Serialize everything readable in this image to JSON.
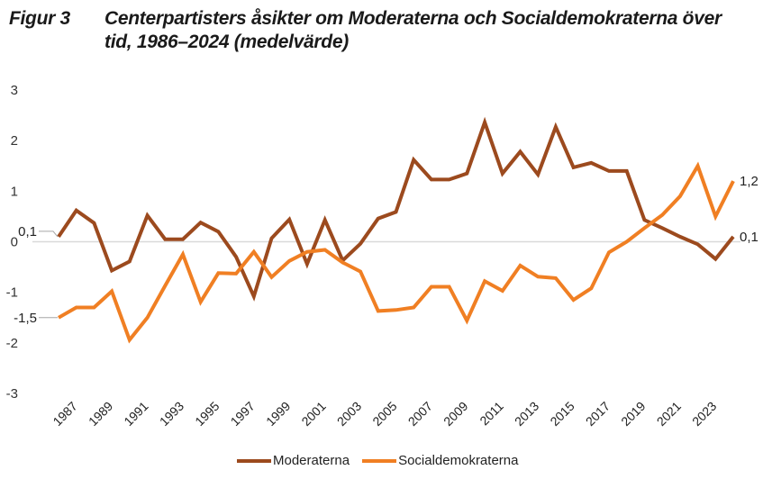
{
  "figure": {
    "number": "Figur 3",
    "title": "Centerpartisters åsikter om Moderaterna och Socialdemokraterna över tid, 1986–2024 (medelvärde)"
  },
  "chart_data": {
    "type": "line",
    "title": "Centerpartisters åsikter om Moderaterna och Socialdemokraterna över tid, 1986–2024 (medelvärde)",
    "xlabel": "",
    "ylabel": "",
    "ylim": [
      -3,
      3
    ],
    "yticks": [
      "3",
      "2",
      "1",
      "0",
      "-1",
      "-2",
      "-3"
    ],
    "ytick_values": [
      3,
      2,
      1,
      0,
      -1,
      -2,
      -3
    ],
    "grid": false,
    "zero_line": true,
    "legend_position": "bottom",
    "x": [
      1986,
      1987,
      1988,
      1989,
      1990,
      1991,
      1992,
      1993,
      1994,
      1995,
      1996,
      1997,
      1998,
      1999,
      2000,
      2001,
      2002,
      2003,
      2004,
      2005,
      2006,
      2007,
      2008,
      2009,
      2010,
      2011,
      2012,
      2013,
      2014,
      2015,
      2016,
      2017,
      2018,
      2019,
      2020,
      2021,
      2022,
      2023,
      2024
    ],
    "xtick_labels": [
      "1987",
      "1989",
      "1991",
      "1993",
      "1995",
      "1997",
      "1999",
      "2001",
      "2003",
      "2005",
      "2007",
      "2009",
      "2011",
      "2013",
      "2015",
      "2017",
      "2019",
      "2021",
      "2023"
    ],
    "series": [
      {
        "name": "Moderaterna",
        "color": "#9c4a1e",
        "values": [
          0.1,
          0.62,
          0.37,
          -0.57,
          -0.39,
          0.52,
          0.05,
          0.05,
          0.38,
          0.2,
          -0.3,
          -1.08,
          0.07,
          0.44,
          -0.44,
          0.43,
          -0.37,
          -0.04,
          0.46,
          0.59,
          1.62,
          1.23,
          1.23,
          1.35,
          2.36,
          1.35,
          1.78,
          1.33,
          2.27,
          1.47,
          1.56,
          1.4,
          1.4,
          0.43,
          0.27,
          0.1,
          -0.05,
          -0.34,
          0.1
        ],
        "start_label": "0,1",
        "end_label": "0,1"
      },
      {
        "name": "Socialdemokraterna",
        "color": "#f07f23",
        "values": [
          -1.5,
          -1.3,
          -1.3,
          -0.98,
          -1.94,
          -1.5,
          -0.87,
          -0.25,
          -1.19,
          -0.62,
          -0.63,
          -0.2,
          -0.7,
          -0.38,
          -0.2,
          -0.16,
          -0.41,
          -0.59,
          -1.37,
          -1.35,
          -1.3,
          -0.89,
          -0.89,
          -1.56,
          -0.78,
          -0.97,
          -0.47,
          -0.69,
          -0.72,
          -1.15,
          -0.92,
          -0.21,
          0.0,
          0.27,
          0.53,
          0.9,
          1.5,
          0.5,
          1.2
        ],
        "start_label": "-1,5",
        "end_label": "1,2"
      }
    ]
  }
}
